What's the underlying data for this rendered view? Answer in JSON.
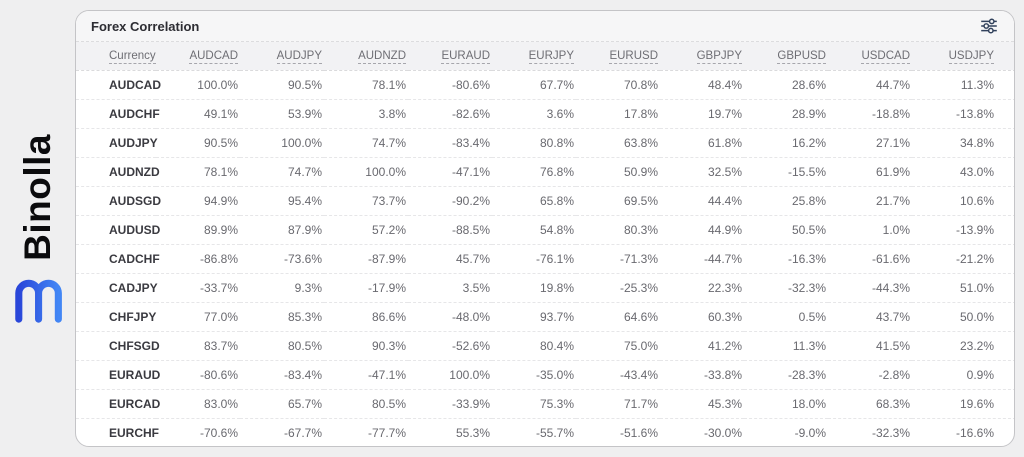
{
  "brand": {
    "name": "Binolla",
    "logo_icon": "binolla-m-logo",
    "logo_color_start": "#2946d9",
    "logo_color_end": "#4286f5"
  },
  "panel": {
    "title": "Forex Correlation",
    "filter_icon": "sliders-icon",
    "icon_color": "#31415c"
  },
  "chart_data": {
    "type": "table",
    "title": "Forex Correlation",
    "columns": [
      "Currency",
      "AUDCAD",
      "AUDJPY",
      "AUDNZD",
      "EURAUD",
      "EURJPY",
      "EURUSD",
      "GBPJPY",
      "GBPUSD",
      "USDCAD",
      "USDJPY"
    ],
    "rows": [
      {
        "currency": "AUDCAD",
        "values": [
          "100.0%",
          "90.5%",
          "78.1%",
          "-80.6%",
          "67.7%",
          "70.8%",
          "48.4%",
          "28.6%",
          "44.7%",
          "11.3%"
        ]
      },
      {
        "currency": "AUDCHF",
        "values": [
          "49.1%",
          "53.9%",
          "3.8%",
          "-82.6%",
          "3.6%",
          "17.8%",
          "19.7%",
          "28.9%",
          "-18.8%",
          "-13.8%"
        ]
      },
      {
        "currency": "AUDJPY",
        "values": [
          "90.5%",
          "100.0%",
          "74.7%",
          "-83.4%",
          "80.8%",
          "63.8%",
          "61.8%",
          "16.2%",
          "27.1%",
          "34.8%"
        ]
      },
      {
        "currency": "AUDNZD",
        "values": [
          "78.1%",
          "74.7%",
          "100.0%",
          "-47.1%",
          "76.8%",
          "50.9%",
          "32.5%",
          "-15.5%",
          "61.9%",
          "43.0%"
        ]
      },
      {
        "currency": "AUDSGD",
        "values": [
          "94.9%",
          "95.4%",
          "73.7%",
          "-90.2%",
          "65.8%",
          "69.5%",
          "44.4%",
          "25.8%",
          "21.7%",
          "10.6%"
        ]
      },
      {
        "currency": "AUDUSD",
        "values": [
          "89.9%",
          "87.9%",
          "57.2%",
          "-88.5%",
          "54.8%",
          "80.3%",
          "44.9%",
          "50.5%",
          "1.0%",
          "-13.9%"
        ]
      },
      {
        "currency": "CADCHF",
        "values": [
          "-86.8%",
          "-73.6%",
          "-87.9%",
          "45.7%",
          "-76.1%",
          "-71.3%",
          "-44.7%",
          "-16.3%",
          "-61.6%",
          "-21.2%"
        ]
      },
      {
        "currency": "CADJPY",
        "values": [
          "-33.7%",
          "9.3%",
          "-17.9%",
          "3.5%",
          "19.8%",
          "-25.3%",
          "22.3%",
          "-32.3%",
          "-44.3%",
          "51.0%"
        ]
      },
      {
        "currency": "CHFJPY",
        "values": [
          "77.0%",
          "85.3%",
          "86.6%",
          "-48.0%",
          "93.7%",
          "64.6%",
          "60.3%",
          "0.5%",
          "43.7%",
          "50.0%"
        ]
      },
      {
        "currency": "CHFSGD",
        "values": [
          "83.7%",
          "80.5%",
          "90.3%",
          "-52.6%",
          "80.4%",
          "75.0%",
          "41.2%",
          "11.3%",
          "41.5%",
          "23.2%"
        ]
      },
      {
        "currency": "EURAUD",
        "values": [
          "-80.6%",
          "-83.4%",
          "-47.1%",
          "100.0%",
          "-35.0%",
          "-43.4%",
          "-33.8%",
          "-28.3%",
          "-2.8%",
          "0.9%"
        ]
      },
      {
        "currency": "EURCAD",
        "values": [
          "83.0%",
          "65.7%",
          "80.5%",
          "-33.9%",
          "75.3%",
          "71.7%",
          "45.3%",
          "18.0%",
          "68.3%",
          "19.6%"
        ]
      },
      {
        "currency": "EURCHF",
        "values": [
          "-70.6%",
          "-67.7%",
          "-77.7%",
          "55.3%",
          "-55.7%",
          "-51.6%",
          "-30.0%",
          "-9.0%",
          "-32.3%",
          "-16.6%"
        ]
      }
    ]
  }
}
